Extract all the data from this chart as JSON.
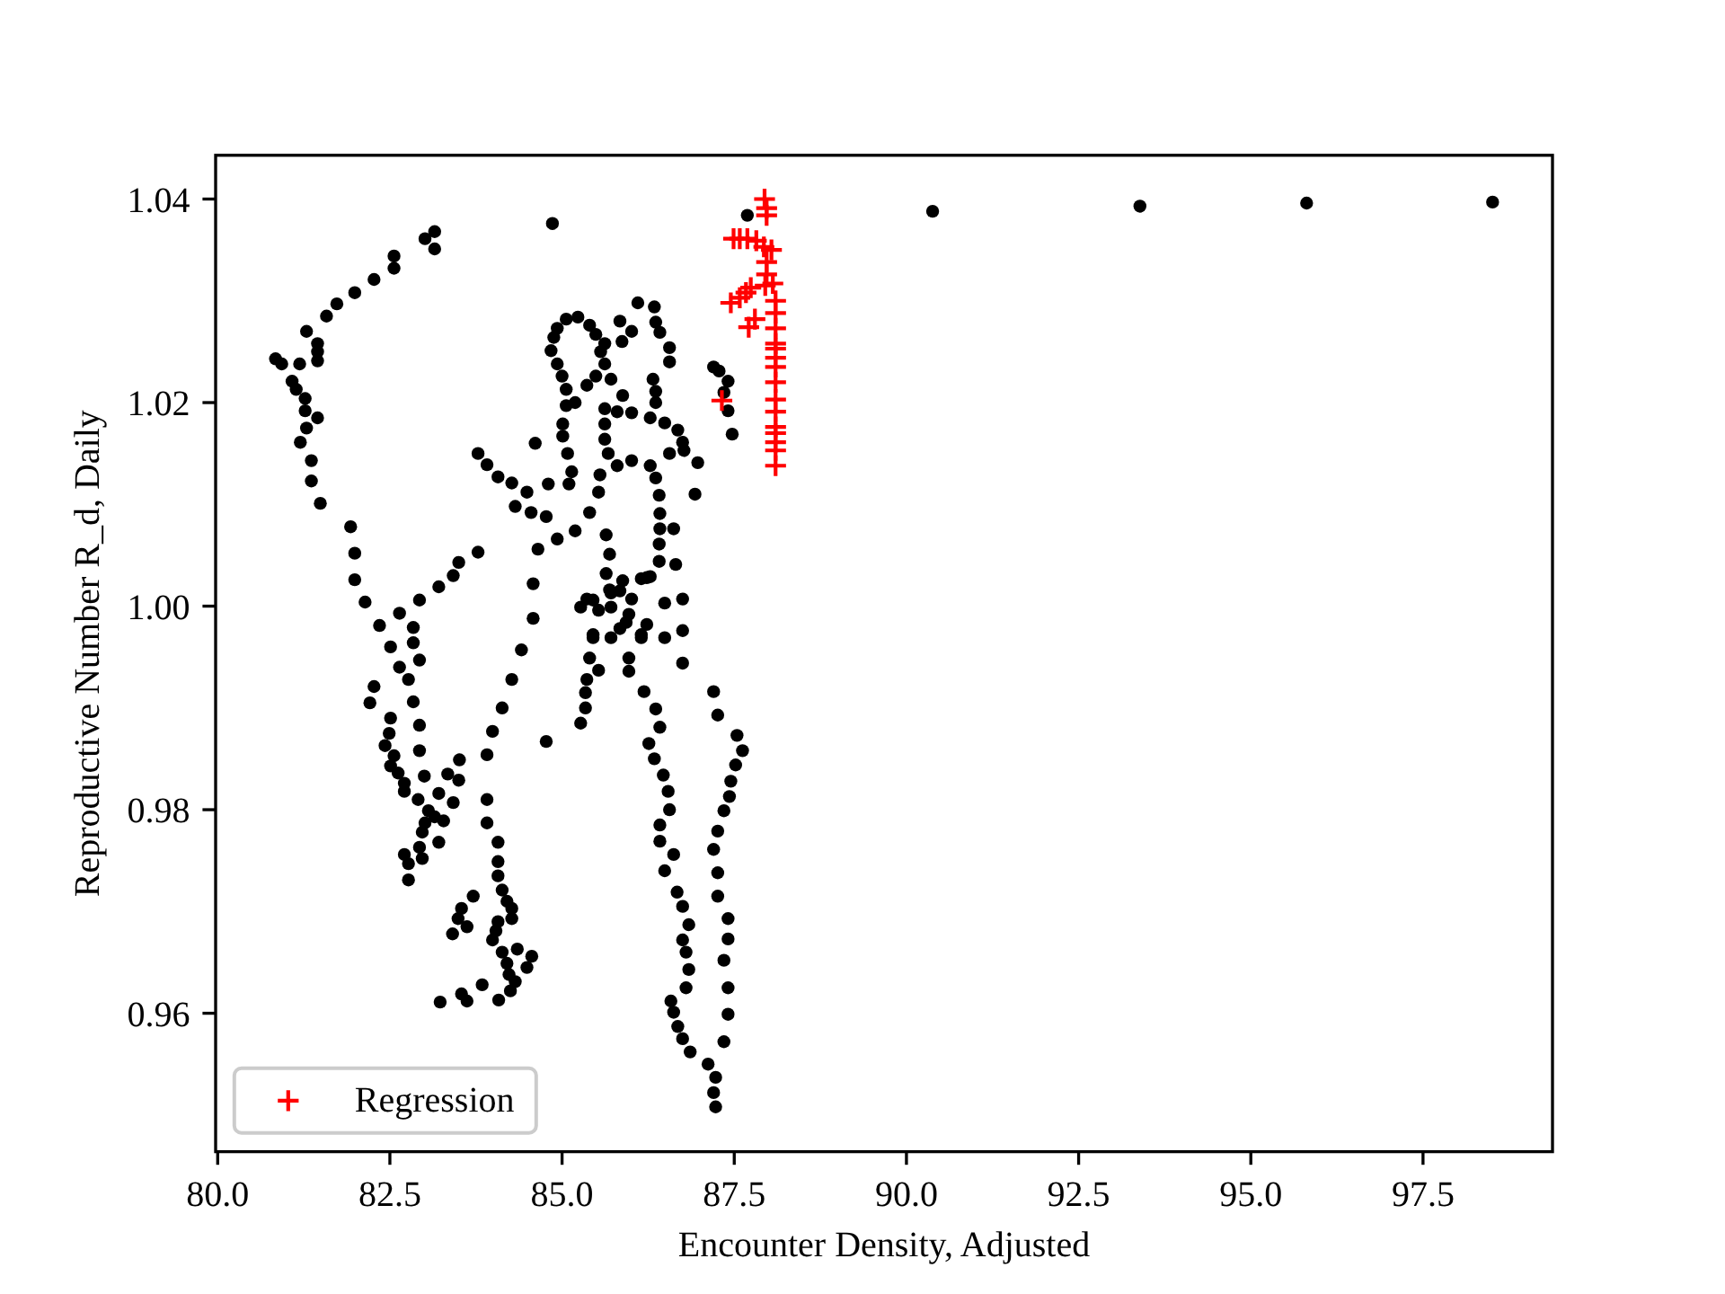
{
  "chart_data": {
    "type": "scatter",
    "xlabel": "Encounter Density, Adjusted",
    "ylabel": "Reproductive Number R_d, Daily",
    "xlim": [
      79.97,
      99.38
    ],
    "ylim": [
      0.9464,
      1.0443
    ],
    "xticks": [
      {
        "value": 80,
        "label": "80.0"
      },
      82.5,
      {
        "value": 85,
        "label": "85.0"
      },
      87.5,
      {
        "value": 90,
        "label": "90.0"
      },
      92.5,
      {
        "value": 95,
        "label": "95.0"
      },
      97.5
    ],
    "yticks": [
      0.96,
      0.98,
      {
        "value": 1,
        "label": "1.00"
      },
      1.02,
      1.04
    ],
    "legend": "bottom left",
    "series": [
      {
        "color": "#000000",
        "marker": "circle",
        "x": [
          98.51,
          95.81,
          93.39,
          90.38,
          87.69,
          84.86,
          83.15,
          83.01,
          83.15,
          82.56,
          82.56,
          82.27,
          81.99,
          81.73,
          81.58,
          81.29,
          81.45,
          81.45,
          81.45,
          80.84,
          80.93,
          81.19,
          81.08,
          81.14,
          81.27,
          81.27,
          81.45,
          81.29,
          81.2,
          81.36,
          81.36,
          81.49,
          81.93,
          81.99,
          81.99,
          82.14,
          82.35,
          82.51,
          82.64,
          82.84,
          82.84,
          82.93,
          83.21,
          83.42,
          83.5,
          83.78,
          83.78,
          83.91,
          84.07,
          84.27,
          84.49,
          84.32,
          84.55,
          84.61,
          84.65,
          84.58,
          84.58,
          84.41,
          82.93,
          82.64,
          82.77,
          82.27,
          82.21,
          82.84,
          82.51,
          82.93,
          82.49,
          82.43,
          82.93,
          82.56,
          82.51,
          82.62,
          82.71,
          82.71,
          83.0,
          83.34,
          83.51,
          83.5,
          83.21,
          82.91,
          83.42,
          83.06,
          83.15,
          83.28,
          83.01,
          82.97,
          83.21,
          82.93,
          82.71,
          82.97,
          82.77,
          82.77,
          84.27,
          84.13,
          83.99,
          83.91,
          83.91,
          83.91,
          84.07,
          84.07,
          84.07,
          84.13,
          84.2,
          84.27,
          84.27,
          83.71,
          83.54,
          83.49,
          83.62,
          83.41,
          84.07,
          84.04,
          83.99,
          84.13,
          84.35,
          84.56,
          84.49,
          84.2,
          84.23,
          84.32,
          84.25,
          83.84,
          83.23,
          83.54,
          83.62,
          84.08,
          86.1,
          86.34,
          85.84,
          86.36,
          86.42,
          86.56,
          86.56,
          86.01,
          85.87,
          85.06,
          85.23,
          84.93,
          84.88,
          84.84,
          84.93,
          85.0,
          85.06,
          85.06,
          85.01,
          85.01,
          85.08,
          85.14,
          85.1,
          85.4,
          85.49,
          85.62,
          85.56,
          85.62,
          85.71,
          85.49,
          85.36,
          85.19,
          85.88,
          86.32,
          86.36,
          86.36,
          86.28,
          86.49,
          86.68,
          86.75,
          86.77,
          85.62,
          85.8,
          86.01,
          85.62,
          85.62,
          85.67,
          85.8,
          86.01,
          86.28,
          86.56,
          86.36,
          86.41,
          86.42,
          86.42,
          86.41,
          86.41,
          86.62,
          86.65,
          86.97,
          86.93,
          86.75,
          85.55,
          85.53,
          85.4,
          85.19,
          84.93,
          84.77,
          84.8,
          85.64,
          85.69,
          85.64,
          85.69,
          87.2,
          87.28,
          87.41,
          87.35,
          87.41,
          87.47,
          85.45,
          85.71,
          85.97,
          86.15,
          86.28,
          85.84,
          86.49,
          85.45,
          85.84,
          86.23,
          86.75,
          85.71,
          86.15,
          86.49,
          85.4,
          85.97,
          85.36,
          85.34,
          85.34,
          85.27,
          84.77,
          86.75,
          86.19,
          86.36,
          86.42,
          86.26,
          86.34,
          86.47,
          86.54,
          86.56,
          86.42,
          86.42,
          86.62,
          86.49,
          86.67,
          86.75,
          86.84,
          86.75,
          86.8,
          86.84,
          86.8,
          86.58,
          86.62,
          86.68,
          86.75,
          86.86,
          87.2,
          87.26,
          87.54,
          87.62,
          87.52,
          87.45,
          87.43,
          87.35,
          87.26,
          87.2,
          87.26,
          87.26,
          87.41,
          87.41,
          87.35,
          87.41,
          87.41,
          87.35,
          87.12,
          87.23,
          87.2,
          87.23,
          85.36,
          85.53,
          85.45,
          85.71,
          85.88,
          86.01,
          85.93,
          86.15,
          86.23,
          85.97,
          85.53,
          85.27
        ],
        "values": [
          1.0397,
          1.0396,
          1.0393,
          1.0388,
          1.0384,
          1.0376,
          1.0368,
          1.0361,
          1.0351,
          1.0344,
          1.0332,
          1.0321,
          1.0308,
          1.0297,
          1.0285,
          1.027,
          1.0258,
          1.025,
          1.0241,
          1.0243,
          1.0238,
          1.0238,
          1.0221,
          1.0213,
          1.0204,
          1.0192,
          1.0185,
          1.0175,
          1.0161,
          1.0143,
          1.0123,
          1.0101,
          1.0078,
          1.0052,
          1.0026,
          1.0004,
          0.9981,
          0.996,
          0.9993,
          0.9979,
          0.9964,
          1.0006,
          1.0019,
          1.003,
          1.0043,
          1.0053,
          1.015,
          1.0139,
          1.0127,
          1.0121,
          1.0112,
          1.0098,
          1.0092,
          1.016,
          1.0056,
          1.0022,
          0.9988,
          0.9957,
          0.9947,
          0.994,
          0.9928,
          0.9921,
          0.9905,
          0.9906,
          0.989,
          0.9883,
          0.9875,
          0.9863,
          0.9858,
          0.9853,
          0.9843,
          0.9836,
          0.9826,
          0.9818,
          0.9833,
          0.9835,
          0.9849,
          0.9829,
          0.9816,
          0.981,
          0.9807,
          0.9799,
          0.9793,
          0.9789,
          0.9787,
          0.9778,
          0.9768,
          0.9763,
          0.9756,
          0.9752,
          0.9747,
          0.9731,
          0.9928,
          0.99,
          0.9877,
          0.9854,
          0.981,
          0.9787,
          0.9768,
          0.9749,
          0.9735,
          0.9721,
          0.971,
          0.9703,
          0.9693,
          0.9715,
          0.9703,
          0.9693,
          0.9685,
          0.9678,
          0.969,
          0.9681,
          0.9672,
          0.966,
          0.9663,
          0.9656,
          0.9645,
          0.9649,
          0.9638,
          0.9631,
          0.9622,
          0.9628,
          0.9611,
          0.9619,
          0.9612,
          0.9613,
          1.0298,
          1.0294,
          1.028,
          1.0279,
          1.0269,
          1.0254,
          1.024,
          1.027,
          1.026,
          1.0282,
          1.0284,
          1.0273,
          1.0264,
          1.0251,
          1.0238,
          1.0226,
          1.0213,
          1.0197,
          1.0179,
          1.0167,
          1.015,
          1.0132,
          1.012,
          1.0276,
          1.0267,
          1.0258,
          1.025,
          1.0238,
          1.0223,
          1.0226,
          1.0217,
          1.02,
          1.0207,
          1.0223,
          1.0211,
          1.02,
          1.0185,
          1.018,
          1.0173,
          1.0161,
          1.0153,
          1.0194,
          1.0191,
          1.019,
          1.0179,
          1.0164,
          1.015,
          1.0138,
          1.0143,
          1.0138,
          1.015,
          1.0126,
          1.0109,
          1.0091,
          1.0076,
          1.0061,
          1.0044,
          1.0076,
          1.0041,
          1.0141,
          1.011,
          1.0007,
          1.0129,
          1.0112,
          1.0092,
          1.0074,
          1.0066,
          1.0088,
          1.012,
          1.007,
          1.0051,
          1.0032,
          1.0016,
          1.0235,
          1.0231,
          1.0221,
          1.021,
          1.0192,
          1.0169,
          1.0006,
          0.9999,
          0.9992,
          1.0027,
          1.0029,
          1.0015,
          1.0003,
          0.9969,
          0.9978,
          0.9982,
          0.9976,
          0.9969,
          0.9969,
          0.9969,
          0.9949,
          0.9936,
          0.9928,
          0.9915,
          0.99,
          0.9885,
          0.9867,
          0.9944,
          0.9916,
          0.9899,
          0.9881,
          0.9865,
          0.985,
          0.9834,
          0.9818,
          0.98,
          0.9785,
          0.9769,
          0.9756,
          0.974,
          0.9719,
          0.9705,
          0.9687,
          0.9672,
          0.966,
          0.9643,
          0.9625,
          0.9612,
          0.9601,
          0.9587,
          0.9575,
          0.9562,
          0.9916,
          0.9893,
          0.9873,
          0.9858,
          0.9844,
          0.9828,
          0.9813,
          0.9799,
          0.9779,
          0.9761,
          0.9738,
          0.9715,
          0.9693,
          0.9673,
          0.9652,
          0.9625,
          0.9599,
          0.9572,
          0.955,
          0.9537,
          0.9522,
          0.9508,
          1.0007,
          0.9996,
          0.9972,
          1.0013,
          1.0025,
          1.0007,
          0.9984,
          0.9972,
          1.0028,
          0.9949,
          0.9937,
          0.9999
        ]
      },
      {
        "name": "Regression",
        "color": "#ff0000",
        "marker": "cross",
        "x": [
          87.94,
          87.97,
          87.97,
          87.49,
          87.58,
          87.69,
          87.82,
          87.93,
          88.04,
          87.97,
          87.97,
          88.06,
          87.95,
          87.74,
          87.67,
          87.58,
          87.45,
          88.1,
          88.1,
          87.8,
          87.71,
          88.1,
          88.1,
          88.1,
          88.1,
          88.1,
          88.1,
          88.1,
          88.1,
          88.1,
          88.1,
          88.1,
          88.1,
          88.1,
          87.32
        ],
        "values": [
          1.04,
          1.0391,
          1.0384,
          1.0361,
          1.0361,
          1.0361,
          1.0359,
          1.0353,
          1.035,
          1.0338,
          1.0326,
          1.0317,
          1.0315,
          1.0313,
          1.0308,
          1.0303,
          1.0298,
          1.03,
          1.0288,
          1.0282,
          1.0274,
          1.0273,
          1.0258,
          1.0253,
          1.0244,
          1.0235,
          1.022,
          1.0203,
          1.0191,
          1.0176,
          1.017,
          1.0161,
          1.0153,
          1.0138,
          1.0202
        ]
      }
    ]
  }
}
